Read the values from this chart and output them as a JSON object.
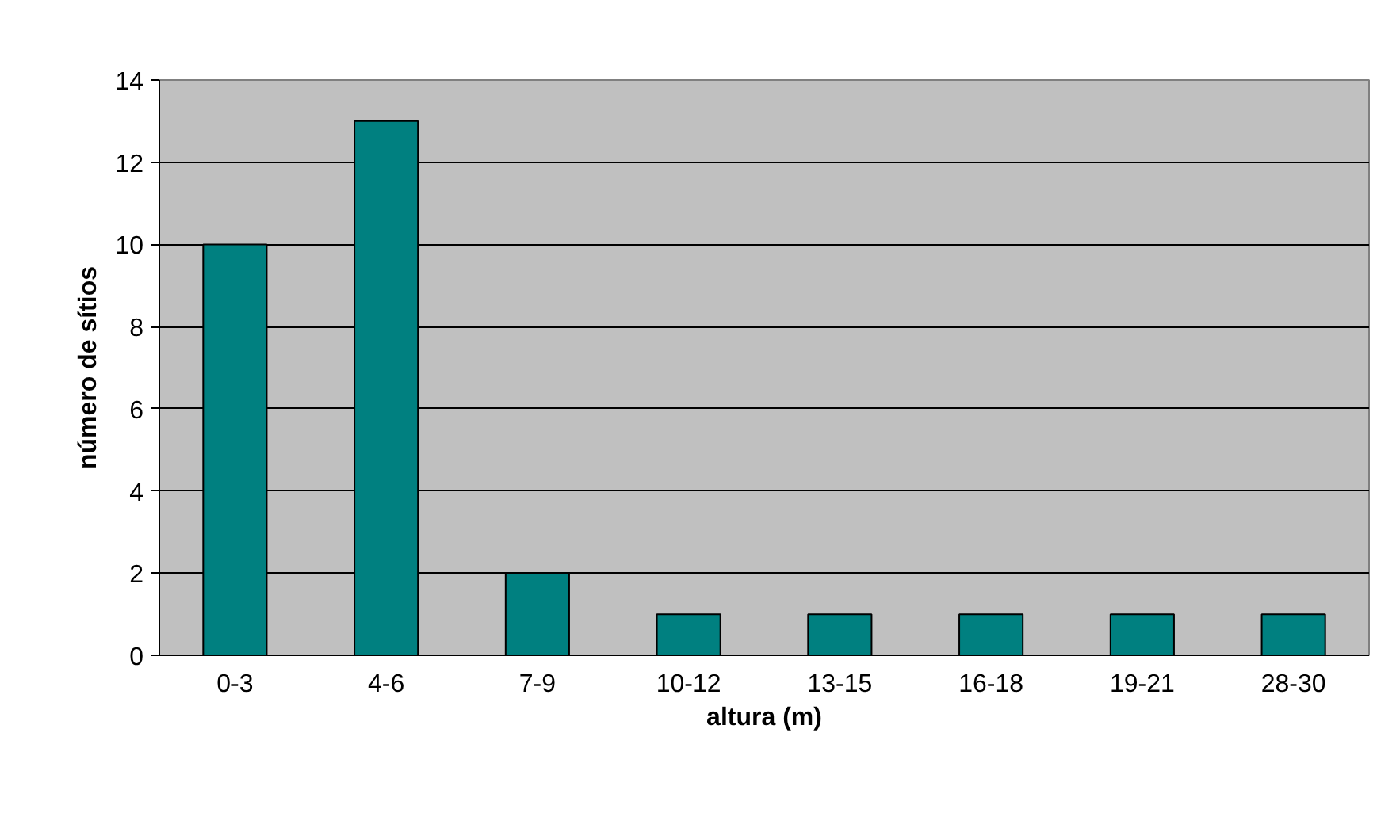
{
  "chart_data": {
    "type": "bar",
    "xlabel": "altura (m)",
    "ylabel": "número de sítios",
    "categories": [
      "0-3",
      "4-6",
      "7-9",
      "10-12",
      "13-15",
      "16-18",
      "19-21",
      "28-30"
    ],
    "values": [
      10,
      13,
      2,
      1,
      1,
      1,
      1,
      1
    ],
    "color": "#008080",
    "ylim": [
      0,
      14
    ],
    "yticks": [
      0,
      2,
      4,
      6,
      8,
      10,
      12,
      14
    ],
    "grid": "y"
  }
}
